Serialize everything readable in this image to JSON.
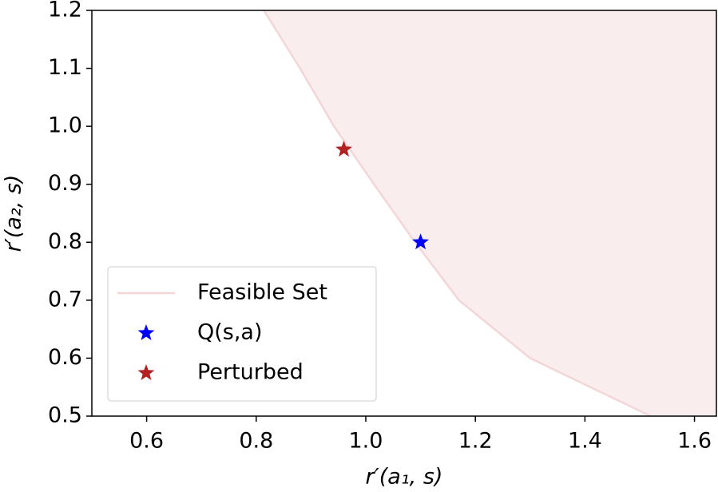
{
  "chart_data": {
    "type": "scatter",
    "xlabel": "r′(a₁, s)",
    "ylabel": "r′(a₂, s)",
    "xlim": [
      0.5,
      1.64
    ],
    "ylim": [
      0.5,
      1.2
    ],
    "xticks": [
      0.6,
      0.8,
      {
        "value": 1.0,
        "label": "1.0"
      },
      1.2,
      1.4,
      1.6
    ],
    "yticks": [
      0.5,
      0.6,
      0.7,
      0.8,
      0.9,
      {
        "value": 1.0,
        "label": "1.0"
      },
      1.1,
      1.2
    ],
    "legend": "lower left",
    "series": [
      {
        "name": "Feasible Set",
        "marker": "line",
        "fill": true,
        "color": "#f2d6d8",
        "x": [
          0.814,
          0.88,
          0.942,
          1.015,
          1.09,
          1.17,
          1.3,
          1.52
        ],
        "y": [
          1.2,
          1.1,
          1.0,
          0.9,
          0.8,
          0.7,
          0.6,
          0.5
        ]
      },
      {
        "name": "Q(s,a)",
        "marker": "star",
        "color": "#0000ff",
        "x": [
          1.1
        ],
        "y": [
          0.8
        ]
      },
      {
        "name": "Perturbed",
        "marker": "star",
        "color": "#b22222",
        "x": [
          0.96
        ],
        "y": [
          0.96
        ]
      }
    ]
  }
}
